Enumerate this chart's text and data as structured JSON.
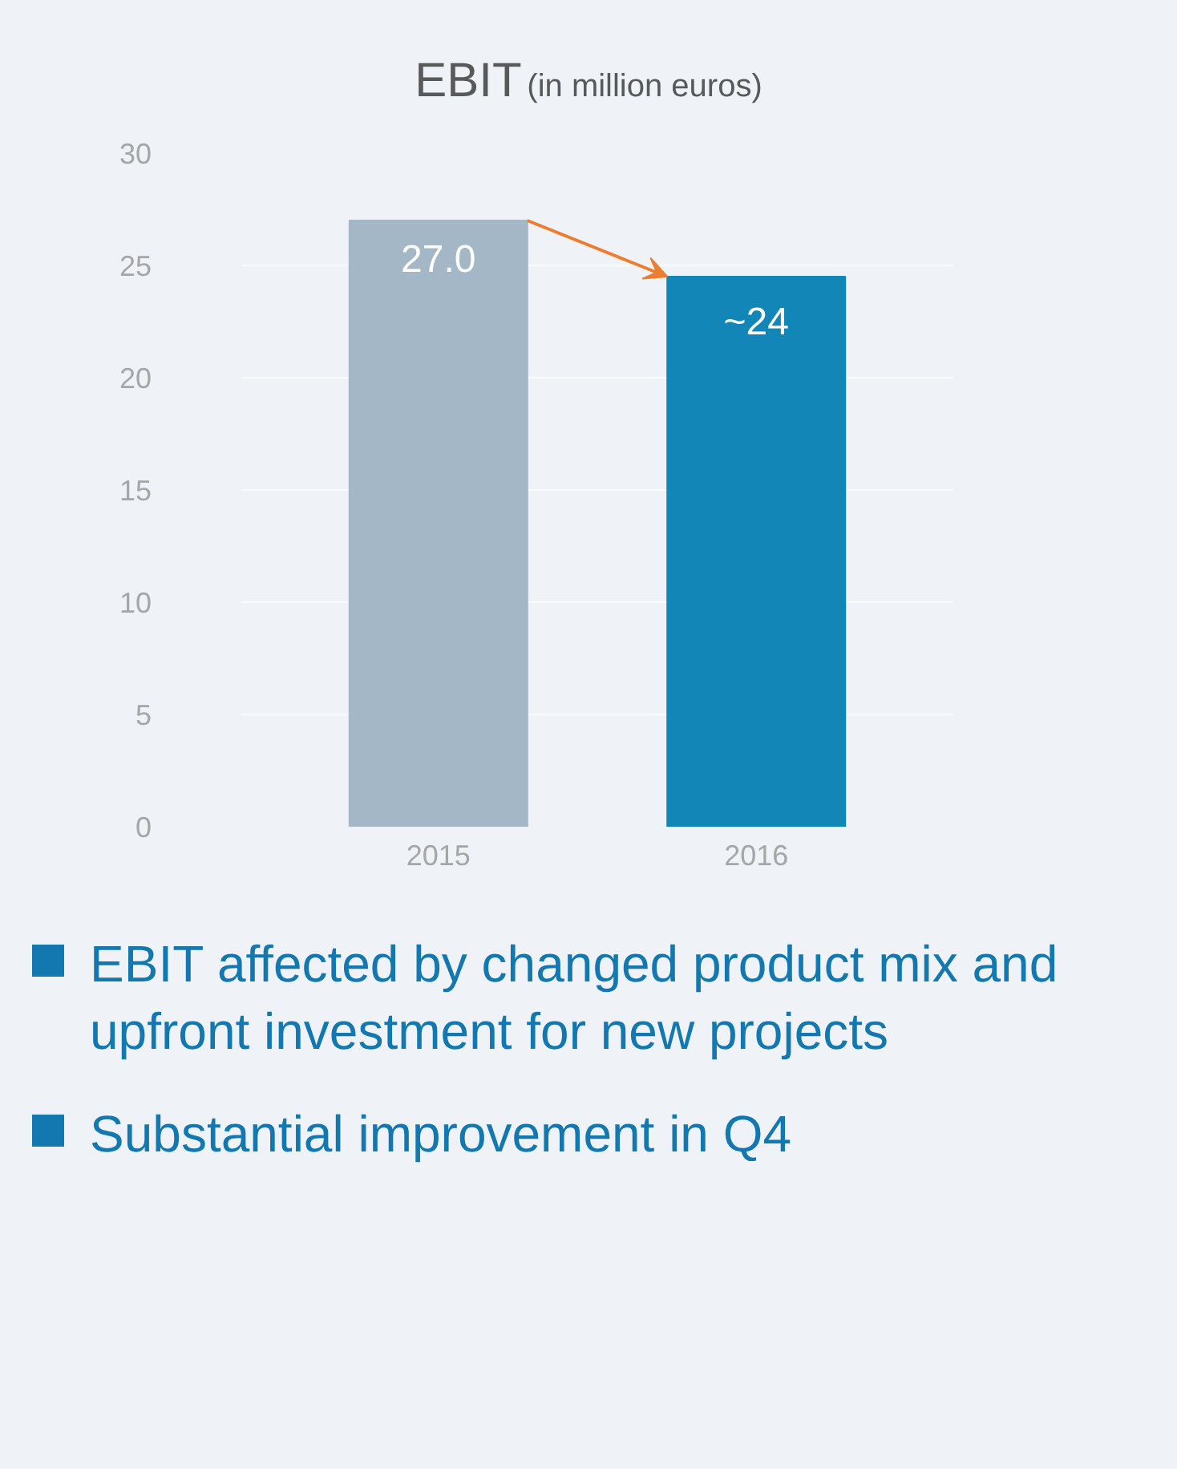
{
  "chart_data": {
    "type": "bar",
    "title": "EBIT",
    "subtitle": "(in million euros)",
    "categories": [
      "2015",
      "2016"
    ],
    "values": [
      27.0,
      24.5
    ],
    "colors": [
      "#a3b7c6",
      "#1386b8"
    ],
    "value_labels": [
      "27.0",
      "~24"
    ],
    "ylim": [
      0,
      30
    ],
    "yticks": [
      0,
      5,
      10,
      15,
      20,
      25,
      30
    ],
    "grid": "y",
    "annotations": [
      "EBIT affected by changed product mix and upfront investment for new projects",
      "Substantial improvement in Q4"
    ]
  }
}
